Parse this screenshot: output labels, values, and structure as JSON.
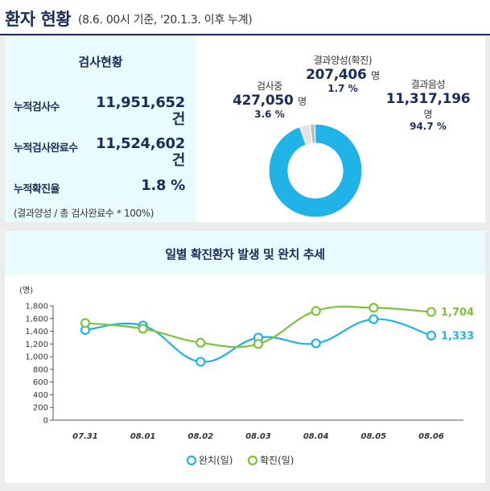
{
  "header": {
    "title": "환자 현황",
    "subtitle": "(8.6. 00시 기준, '20.1.3. 이후 누계)"
  },
  "test_status": {
    "title": "검사현황",
    "rows": [
      {
        "label": "누적검사수",
        "value": "11,951,652",
        "unit": "건"
      },
      {
        "label": "누적검사완료수",
        "value": "11,524,602",
        "unit": "건"
      },
      {
        "label": "누적확진율",
        "value": "1.8 %"
      }
    ],
    "formula": "(결과양성 / 총 검사완료수 * 100%)"
  },
  "donut": {
    "testing": {
      "label": "검사중",
      "value": "427,050",
      "unit": "명",
      "pct": "3.6 %",
      "share": 3.6,
      "color": "#e3e3e3"
    },
    "positive": {
      "label": "결과양성(확진)",
      "value": "207,406",
      "unit": "명",
      "pct": "1.7 %",
      "share": 1.7,
      "color": "#bdbdbd"
    },
    "negative": {
      "label": "결과음성",
      "value": "11,317,196",
      "unit": "명",
      "pct": "94.7 %",
      "share": 94.7,
      "color": "#1fb3e8"
    }
  },
  "chart_data": {
    "type": "line",
    "title": "일별 확진환자 발생 및 완치 추세",
    "ylabel": "(명)",
    "ylim": [
      0,
      1800
    ],
    "yticks": [
      "0",
      "200",
      "400",
      "600",
      "800",
      "1,000",
      "1,200",
      "1,400",
      "1,600",
      "1,800"
    ],
    "categories": [
      "07.31",
      "08.01",
      "08.02",
      "08.03",
      "08.04",
      "08.05",
      "08.06"
    ],
    "series": [
      {
        "name": "완치(일)",
        "color": "#1fb3e8",
        "values": [
          1420,
          1490,
          920,
          1300,
          1210,
          1590,
          1333
        ],
        "end_label": "1,333"
      },
      {
        "name": "확진(일)",
        "color": "#7cc23a",
        "values": [
          1530,
          1440,
          1220,
          1200,
          1720,
          1770,
          1704
        ],
        "end_label": "1,704"
      }
    ],
    "grid": false,
    "legend": "bottom"
  }
}
